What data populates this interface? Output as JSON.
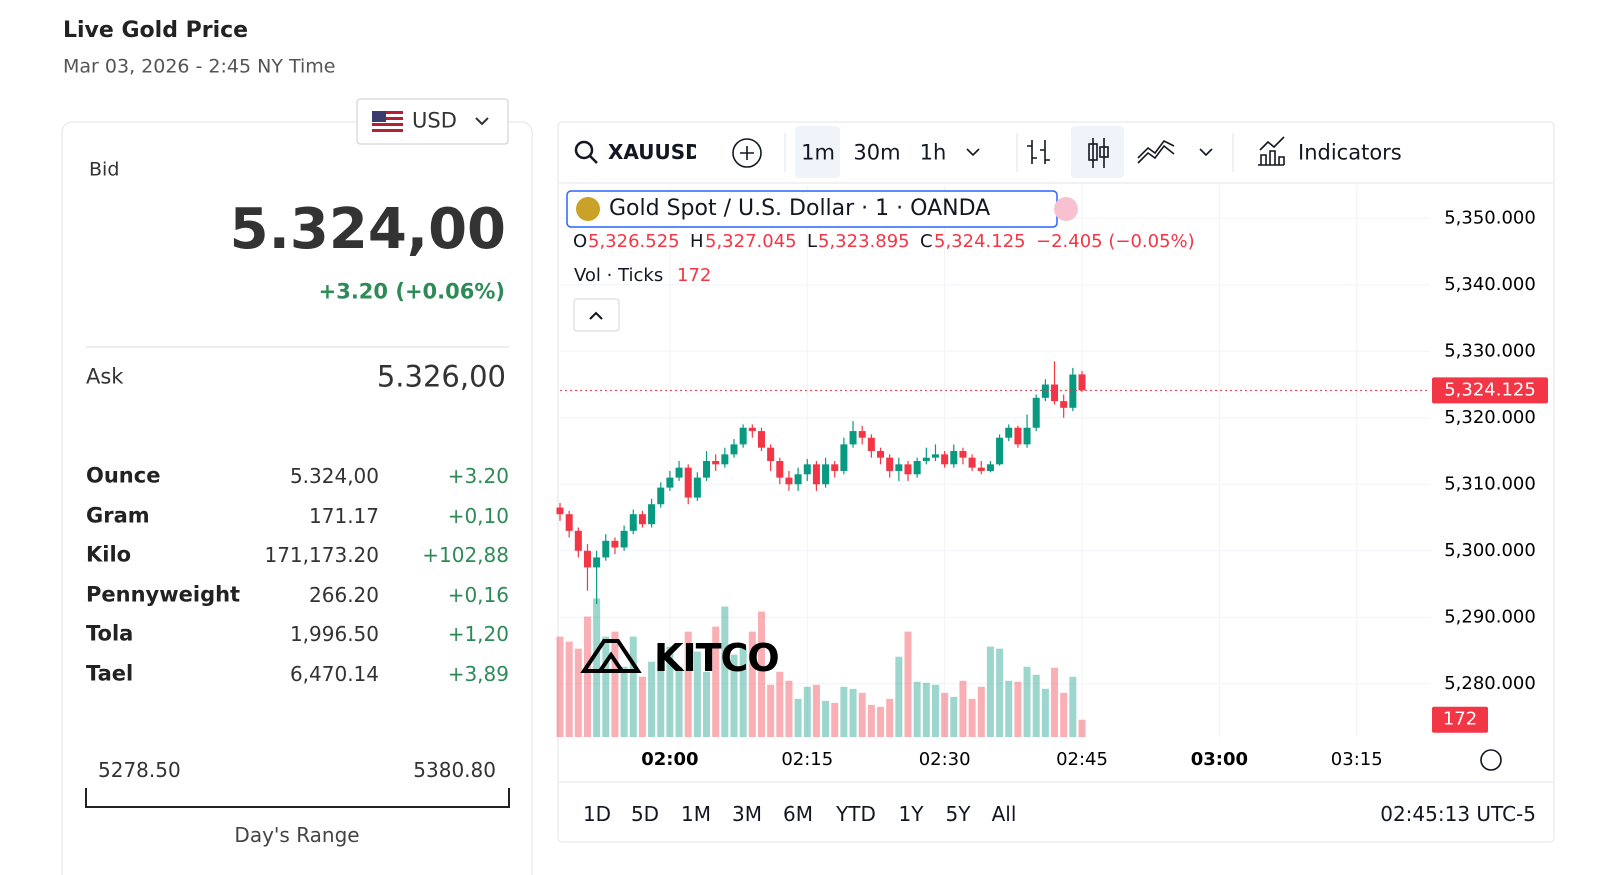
{
  "header": {
    "title": "Live Gold Price",
    "subtitle": "Mar 03, 2026 - 2:45 NY Time"
  },
  "quote": {
    "currency": "USD",
    "bid_label": "Bid",
    "bid": "5.324,00",
    "change": "+3.20 (+0.06%)",
    "ask_label": "Ask",
    "ask": "5.326,00",
    "units": [
      {
        "name": "Ounce",
        "price": "5.324,00",
        "change": "+3.20"
      },
      {
        "name": "Gram",
        "price": "171.17",
        "change": "+0,10"
      },
      {
        "name": "Kilo",
        "price": "171,173.20",
        "change": "+102,88"
      },
      {
        "name": "Pennyweight",
        "price": "266.20",
        "change": "+0,16"
      },
      {
        "name": "Tola",
        "price": "1,996.50",
        "change": "+1,20"
      },
      {
        "name": "Tael",
        "price": "6,470.14",
        "change": "+3,89"
      }
    ],
    "range_low": "5278.50",
    "range_high": "5380.80",
    "range_label": "Day's Range"
  },
  "toolbar": {
    "symbol": "XAUUSD",
    "intervals": [
      "1m",
      "30m",
      "1h"
    ],
    "indicators": "Indicators",
    "ranges": [
      "1D",
      "5D",
      "1M",
      "3M",
      "6M",
      "YTD",
      "1Y",
      "5Y",
      "All"
    ],
    "clock": "02:45:13 UTC-5",
    "watermark": "KITCO"
  },
  "legend": {
    "title": "Gold Spot / U.S. Dollar · 1 · OANDA",
    "ohlc": [
      {
        "key": "O",
        "value": "5,326.525"
      },
      {
        "key": "H",
        "value": "5,327.045"
      },
      {
        "key": "L",
        "value": "5,323.895"
      },
      {
        "key": "C",
        "value": "5,324.125"
      }
    ],
    "change": "−2.405 (−0.05%)",
    "vol_label": "Vol · Ticks",
    "vol_value": "172"
  },
  "chart_data": {
    "type": "candlestick",
    "up_color": "#089981",
    "down_color": "#f23645",
    "x": [
      "01:48",
      "01:49",
      "01:50",
      "01:51",
      "01:52",
      "01:53",
      "01:54",
      "01:55",
      "01:56",
      "01:57",
      "01:58",
      "01:59",
      "02:00",
      "02:01",
      "02:02",
      "02:03",
      "02:04",
      "02:05",
      "02:06",
      "02:07",
      "02:08",
      "02:09",
      "02:10",
      "02:11",
      "02:12",
      "02:13",
      "02:14",
      "02:15",
      "02:16",
      "02:17",
      "02:18",
      "02:19",
      "02:20",
      "02:21",
      "02:22",
      "02:23",
      "02:24",
      "02:25",
      "02:26",
      "02:27",
      "02:28",
      "02:29",
      "02:30",
      "02:31",
      "02:32",
      "02:33",
      "02:34",
      "02:35",
      "02:36",
      "02:37",
      "02:38",
      "02:39",
      "02:40",
      "02:41",
      "02:42",
      "02:43",
      "02:44",
      "02:45"
    ],
    "open": [
      5306.5,
      5305.5,
      5303,
      5300,
      5297.5,
      5299,
      5301.5,
      5300.5,
      5303,
      5305.5,
      5304,
      5307,
      5309.5,
      5311,
      5312.5,
      5308,
      5311,
      5313.5,
      5313,
      5314.5,
      5316,
      5318.5,
      5318,
      5315.5,
      5313.5,
      5311,
      5310,
      5311.5,
      5313,
      5310,
      5313,
      5312,
      5316,
      5318,
      5317,
      5315,
      5314,
      5312,
      5313,
      5311.5,
      5313.5,
      5314,
      5314.5,
      5313,
      5315,
      5314,
      5312.5,
      5312,
      5313,
      5317,
      5318.5,
      5316,
      5318.5,
      5323,
      5325,
      5322.5,
      5321.5,
      5326.525
    ],
    "high": [
      5307.2,
      5306,
      5303.5,
      5301,
      5300,
      5302.5,
      5302,
      5303.8,
      5306.2,
      5306,
      5307.8,
      5310.3,
      5312,
      5313.5,
      5313,
      5311.8,
      5315,
      5314.5,
      5315.5,
      5316.8,
      5319,
      5319,
      5318.5,
      5316,
      5314,
      5312,
      5312.5,
      5313.8,
      5313.5,
      5314,
      5313.5,
      5317,
      5319.5,
      5318.8,
      5317.5,
      5315.5,
      5314.5,
      5314,
      5313.5,
      5314,
      5315.5,
      5316,
      5315,
      5316,
      5315.5,
      5314.5,
      5313.5,
      5313.5,
      5317.5,
      5319,
      5318.8,
      5320.5,
      5323.5,
      5325.8,
      5328.5,
      5323.5,
      5327.5,
      5327.045
    ],
    "low": [
      5304.5,
      5302,
      5299,
      5294,
      5292,
      5298.5,
      5299.5,
      5300,
      5302.5,
      5303.5,
      5303.5,
      5306.5,
      5309,
      5310.5,
      5307,
      5307.5,
      5310.5,
      5312,
      5312.5,
      5314,
      5315.5,
      5317,
      5315,
      5312,
      5310,
      5309,
      5309,
      5310.5,
      5309,
      5309.5,
      5311,
      5311.5,
      5315.5,
      5316,
      5314,
      5313,
      5311,
      5310.5,
      5310.5,
      5311,
      5313,
      5313.5,
      5312.5,
      5312.5,
      5313,
      5312,
      5311.5,
      5311.8,
      5312.8,
      5316.5,
      5315.5,
      5315.5,
      5318,
      5322.5,
      5322,
      5320,
      5321,
      5323.895
    ],
    "close": [
      5305.5,
      5303,
      5300,
      5297.5,
      5299,
      5301.5,
      5300.5,
      5303,
      5305.5,
      5304,
      5307,
      5309.5,
      5311,
      5312.5,
      5308,
      5311,
      5313.5,
      5313,
      5314.5,
      5316,
      5318.5,
      5318,
      5315.5,
      5313.5,
      5311,
      5310,
      5311.5,
      5313,
      5310,
      5313,
      5312,
      5316,
      5318,
      5317,
      5315,
      5314,
      5312,
      5313,
      5311.5,
      5313.5,
      5314,
      5314.5,
      5313,
      5315,
      5314,
      5312.5,
      5312,
      5313,
      5317,
      5318.5,
      5316,
      5318.5,
      5323,
      5325,
      5322.5,
      5321.5,
      5326.5,
      5324.125
    ],
    "volume": [
      1000,
      950,
      880,
      1200,
      1380,
      1000,
      1050,
      700,
      1000,
      600,
      750,
      850,
      900,
      700,
      1050,
      850,
      650,
      1100,
      1300,
      820,
      900,
      1050,
      1250,
      520,
      650,
      560,
      380,
      500,
      520,
      360,
      340,
      500,
      480,
      440,
      320,
      300,
      380,
      800,
      1050,
      550,
      540,
      520,
      440,
      400,
      560,
      380,
      500,
      900,
      880,
      560,
      550,
      700,
      620,
      480,
      690,
      440,
      600,
      172
    ],
    "last_close_label": "5,324.125",
    "last_volume_label": "172",
    "xlim": [
      "01:48",
      "03:23"
    ],
    "xticks": [
      "02:00",
      "02:15",
      "02:30",
      "02:45",
      "03:00",
      "03:15"
    ],
    "ylim": [
      5272,
      5355
    ],
    "yticks": [
      {
        "value": 5280,
        "label": "5,280.000"
      },
      {
        "value": 5290,
        "label": "5,290.000"
      },
      {
        "value": 5300,
        "label": "5,300.000"
      },
      {
        "value": 5310,
        "label": "5,310.000"
      },
      {
        "value": 5320,
        "label": "5,320.000"
      },
      {
        "value": 5330,
        "label": "5,330.000"
      },
      {
        "value": 5340,
        "label": "5,340.000"
      },
      {
        "value": 5350,
        "label": "5,350.000"
      }
    ],
    "y2lim": [
      0,
      5500
    ],
    "grid": true
  }
}
